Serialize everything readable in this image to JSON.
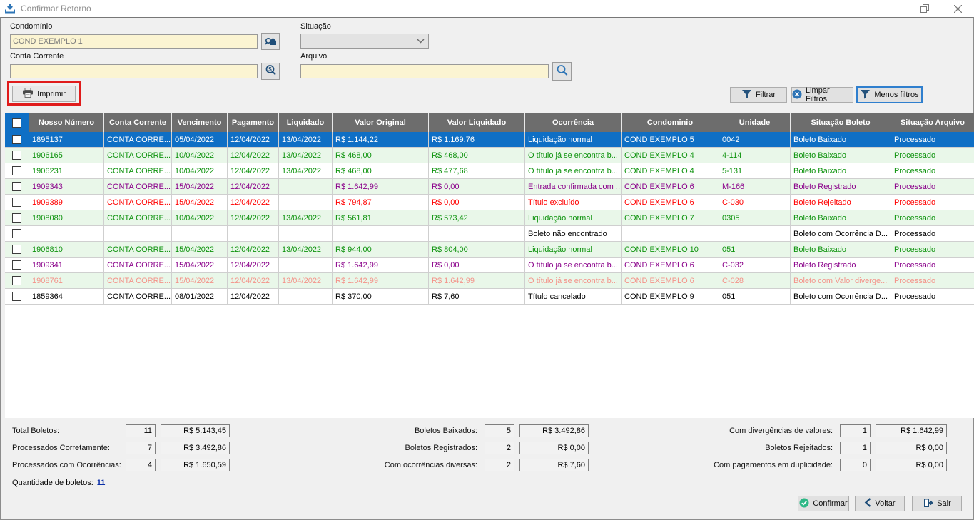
{
  "window": {
    "title": "Confirmar Retorno"
  },
  "filters": {
    "condominio_label": "Condomínio",
    "condominio_value": "COND EXEMPLO 1",
    "situacao_label": "Situação",
    "situacao_value": "",
    "conta_corrente_label": "Conta Corrente",
    "conta_corrente_value": "",
    "arquivo_label": "Arquivo",
    "arquivo_value": "",
    "imprimir_label": "Imprimir",
    "filtrar_label": "Filtrar",
    "limpar_label": "Limpar Filtros",
    "menos_label": "Menos filtros"
  },
  "table": {
    "headers": [
      "Nosso Número",
      "Conta Corrente",
      "Vencimento",
      "Pagamento",
      "Liquidado",
      "Valor Original",
      "Valor Liquidado",
      "Ocorrência",
      "Condominio",
      "Unidade",
      "Situação Boleto",
      "Situação Arquivo"
    ],
    "rows": [
      {
        "state": "selected",
        "cells": [
          "1895137",
          "CONTA CORRE...",
          "05/04/2022",
          "12/04/2022",
          "13/04/2022",
          "R$ 1.144,22",
          "R$ 1.169,76",
          "Liquidação normal",
          "COND EXEMPLO 5",
          "0042",
          "Boleto Baixado",
          "Processado"
        ]
      },
      {
        "state": "green",
        "cells": [
          "1906165",
          "CONTA CORRE...",
          "10/04/2022",
          "12/04/2022",
          "13/04/2022",
          "R$ 468,00",
          "R$ 468,00",
          "O título já se encontra b...",
          "COND EXEMPLO 4",
          "4-114",
          "Boleto Baixado",
          "Processado"
        ]
      },
      {
        "state": "green",
        "cells": [
          "1906231",
          "CONTA CORRE...",
          "10/04/2022",
          "12/04/2022",
          "13/04/2022",
          "R$ 468,00",
          "R$ 477,68",
          "O título já se encontra b...",
          "COND EXEMPLO 4",
          "5-131",
          "Boleto Baixado",
          "Processado"
        ]
      },
      {
        "state": "purple",
        "cells": [
          "1909343",
          "CONTA CORRE...",
          "15/04/2022",
          "12/04/2022",
          "",
          "R$ 1.642,99",
          "R$ 0,00",
          "Entrada confirmada com ...",
          "COND EXEMPLO 6",
          "M-166",
          "Boleto Registrado",
          "Processado"
        ]
      },
      {
        "state": "red",
        "cells": [
          "1909389",
          "CONTA CORRE...",
          "15/04/2022",
          "12/04/2022",
          "",
          "R$ 794,87",
          "R$ 0,00",
          "Título excluído",
          "COND EXEMPLO 6",
          "C-030",
          "Boleto Rejeitado",
          "Processado"
        ]
      },
      {
        "state": "green",
        "cells": [
          "1908080",
          "CONTA CORRE...",
          "10/04/2022",
          "12/04/2022",
          "13/04/2022",
          "R$ 561,81",
          "R$ 573,42",
          "Liquidação normal",
          "COND EXEMPLO 7",
          "0305",
          "Boleto Baixado",
          "Processado"
        ]
      },
      {
        "state": "black",
        "cells": [
          "",
          "",
          "",
          "",
          "",
          "",
          "",
          "Boleto não encontrado",
          "",
          "",
          "Boleto com Ocorrência D...",
          "Processado"
        ]
      },
      {
        "state": "green",
        "cells": [
          "1906810",
          "CONTA CORRE...",
          "15/04/2022",
          "12/04/2022",
          "13/04/2022",
          "R$ 944,00",
          "R$ 804,00",
          "Liquidação normal",
          "COND EXEMPLO 10",
          "051",
          "Boleto Baixado",
          "Processado"
        ]
      },
      {
        "state": "purple",
        "cells": [
          "1909341",
          "CONTA CORRE...",
          "15/04/2022",
          "12/04/2022",
          "",
          "R$ 1.642,99",
          "R$ 0,00",
          "O título já se encontra b...",
          "COND EXEMPLO 6",
          "C-032",
          "Boleto Registrado",
          "Processado"
        ]
      },
      {
        "state": "salmon",
        "cells": [
          "1908761",
          "CONTA CORRE...",
          "15/04/2022",
          "12/04/2022",
          "13/04/2022",
          "R$ 1.642,99",
          "R$ 1.642,99",
          "O título já se encontra b...",
          "COND EXEMPLO 6",
          "C-028",
          "Boleto com Valor diverge...",
          "Processado"
        ]
      },
      {
        "state": "black",
        "cells": [
          "1859364",
          "CONTA CORRE...",
          "08/01/2022",
          "12/04/2022",
          "",
          "R$ 370,00",
          "R$ 7,60",
          "Título cancelado",
          "COND EXEMPLO 9",
          "051",
          "Boleto com Ocorrência D...",
          "Processado"
        ]
      }
    ]
  },
  "summary": {
    "left": [
      {
        "label": "Total Boletos:",
        "count": "11",
        "value": "R$ 5.143,45"
      },
      {
        "label": "Processados Corretamente:",
        "count": "7",
        "value": "R$ 3.492,86"
      },
      {
        "label": "Processados com Ocorrências:",
        "count": "4",
        "value": "R$ 1.650,59"
      }
    ],
    "middle": [
      {
        "label": "Boletos Baixados:",
        "count": "5",
        "value": "R$ 3.492,86"
      },
      {
        "label": "Boletos Registrados:",
        "count": "2",
        "value": "R$ 0,00"
      },
      {
        "label": "Com ocorrências diversas:",
        "count": "2",
        "value": "R$ 7,60"
      }
    ],
    "right": [
      {
        "label": "Com divergências de valores:",
        "count": "1",
        "value": "R$ 1.642,99"
      },
      {
        "label": "Boletos Rejeitados:",
        "count": "1",
        "value": "R$ 0,00"
      },
      {
        "label": "Com pagamentos em duplicidade:",
        "count": "0",
        "value": "R$ 0,00"
      }
    ],
    "quantidade_label": "Quantidade de boletos:",
    "quantidade_value": "11"
  },
  "footer": {
    "confirmar_label": "Confirmar",
    "voltar_label": "Voltar",
    "sair_label": "Sair"
  },
  "icons": {
    "title": "download-tray-icon",
    "condominio_lookup": "house-search-icon",
    "conta_lookup": "money-search-icon",
    "arquivo_lookup": "search-icon",
    "imprimir": "printer-icon",
    "filtrar": "funnel-icon",
    "limpar": "circle-x-icon",
    "menos": "funnel-icon",
    "confirmar": "check-circle-icon",
    "voltar": "chevron-left-icon",
    "sair": "exit-door-icon"
  },
  "colors": {
    "selected_row": "#0f6fc5",
    "header_bg": "#6d6d6d",
    "stripe_bg": "#e9f7e9",
    "text_green": "#0e930e",
    "text_purple": "#8a008a",
    "text_red": "#ff0000",
    "text_salmon": "#f4938a",
    "input_bg": "#fbf4d2",
    "annotation_red": "#e01b1b",
    "focus_blue": "#2f7fce",
    "accent_blue": "#1f4e79",
    "confirm_green": "#2eb886",
    "qty_blue": "#0b2fa8"
  }
}
